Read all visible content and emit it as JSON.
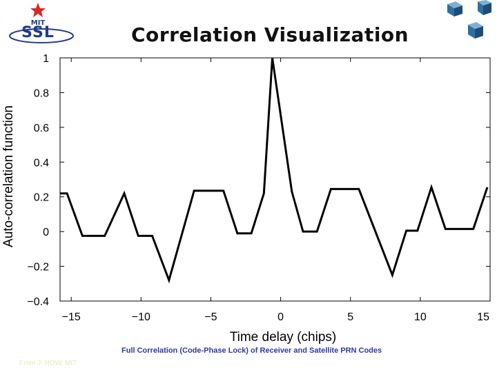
{
  "header": {
    "title": "Correlation Visualization",
    "logo_top_text": "MIT",
    "logo_main_text": "SSL"
  },
  "caption": "Full Correlation (Code-Phase Lock) of Receiver and Satellite PRN Codes",
  "credit": "From J. HOW, MIT",
  "colors": {
    "caption": "#2a3aa8",
    "logo_blue": "#1f3c8c",
    "logo_star": "#d62828",
    "cube": "#2f6f9f"
  },
  "chart_data": {
    "type": "line",
    "title": "",
    "xlabel": "Time delay (chips)",
    "ylabel": "Auto-correlation function",
    "xlim": [
      -15.8,
      15
    ],
    "ylim": [
      -0.4,
      1
    ],
    "xticks": [
      -15,
      -10,
      -5,
      0,
      5,
      10,
      15
    ],
    "yticks": [
      1,
      0.8,
      0.6,
      0.4,
      0.2,
      0,
      -0.2,
      -0.4
    ],
    "ytick_labels": [
      "1",
      "0.8",
      "0.6",
      "0.4",
      "0.2",
      "0",
      "−0.2",
      "−0.4"
    ],
    "xtick_labels": [
      "−15",
      "−10",
      "−5",
      "0",
      "5",
      "10",
      "15"
    ],
    "grid": false,
    "series": [
      {
        "name": "auto-correlation",
        "x": [
          -15.8,
          -15.3,
          -14.2,
          -12.6,
          -11.2,
          -10.2,
          -9.2,
          -8.0,
          -6.2,
          -4.1,
          -3.1,
          -2.1,
          -1.2,
          -0.6,
          0.8,
          1.6,
          2.6,
          3.6,
          5.6,
          8.0,
          9.0,
          9.8,
          10.8,
          11.8,
          13.8,
          14.8
        ],
        "y": [
          0.22,
          0.22,
          -0.025,
          -0.025,
          0.22,
          -0.025,
          -0.025,
          -0.28,
          0.235,
          0.235,
          -0.01,
          -0.01,
          0.22,
          1.0,
          0.23,
          0.0,
          0.0,
          0.245,
          0.245,
          -0.25,
          0.005,
          0.005,
          0.255,
          0.015,
          0.015,
          0.255
        ]
      }
    ]
  }
}
